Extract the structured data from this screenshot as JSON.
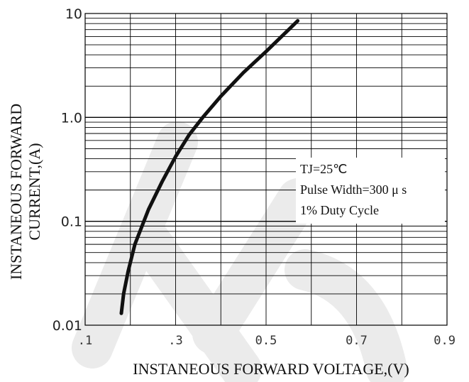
{
  "chart_data": {
    "type": "line",
    "title": "",
    "xlabel": "INSTANEOUS FORWARD VOLTAGE,(V)",
    "ylabel_line1": "INSTANEOUS FORWARD",
    "ylabel_line2": "CURRENT,(A)",
    "x_scale": "linear",
    "y_scale": "log",
    "xlim": [
      0.1,
      0.9
    ],
    "ylim": [
      0.01,
      10
    ],
    "x_ticks": [
      {
        "value": 0.1,
        "label": ".1"
      },
      {
        "value": 0.3,
        "label": ".3"
      },
      {
        "value": 0.5,
        "label": "0.5"
      },
      {
        "value": 0.7,
        "label": "0.7"
      },
      {
        "value": 0.9,
        "label": "0.9"
      }
    ],
    "y_ticks": [
      {
        "value": 0.01,
        "label": "0.01"
      },
      {
        "value": 0.1,
        "label": "0.1"
      },
      {
        "value": 1,
        "label": "1.0"
      },
      {
        "value": 10,
        "label": "10"
      }
    ],
    "grid": true,
    "series": [
      {
        "color": "#111111",
        "x": [
          0.18,
          0.185,
          0.195,
          0.21,
          0.24,
          0.27,
          0.3,
          0.33,
          0.36,
          0.4,
          0.45,
          0.5,
          0.55,
          0.57
        ],
        "y": [
          0.013,
          0.02,
          0.033,
          0.06,
          0.13,
          0.24,
          0.42,
          0.68,
          1.0,
          1.6,
          2.7,
          4.3,
          7.0,
          8.5
        ]
      }
    ],
    "annotations": [
      "TJ=25℃",
      "Pulse Width=300 μ s",
      "1% Duty Cycle"
    ]
  }
}
